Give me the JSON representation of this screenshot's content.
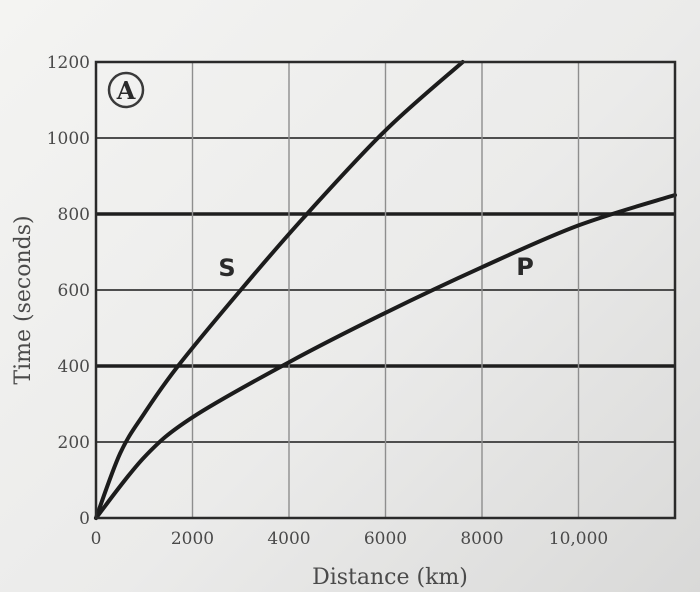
{
  "chart_data": {
    "type": "line",
    "title": "",
    "panel_label": "A",
    "xlabel": "Distance (km)",
    "ylabel": "Time (seconds)",
    "xlim": [
      0,
      12000
    ],
    "ylim": [
      0,
      1200
    ],
    "x_ticks": [
      0,
      2000,
      4000,
      6000,
      8000,
      10000
    ],
    "x_tick_labels": [
      "0",
      "2000",
      "4000",
      "6000",
      "8000",
      "10,000"
    ],
    "y_ticks": [
      0,
      200,
      400,
      600,
      800,
      1000,
      1200
    ],
    "y_tick_labels": [
      "0",
      "200",
      "400",
      "600",
      "800",
      "1000",
      "1200"
    ],
    "grid": true,
    "series": [
      {
        "name": "S",
        "color": "#1c1c1c",
        "x": [
          0,
          500,
          1000,
          1700,
          3000,
          4300,
          6000,
          7600
        ],
        "y": [
          0,
          170,
          275,
          400,
          600,
          790,
          1020,
          1200
        ]
      },
      {
        "name": "P",
        "color": "#1c1c1c",
        "x": [
          0,
          1000,
          2000,
          4000,
          6000,
          8000,
          10000,
          12000
        ],
        "y": [
          0,
          160,
          265,
          410,
          540,
          660,
          770,
          850
        ]
      }
    ]
  }
}
